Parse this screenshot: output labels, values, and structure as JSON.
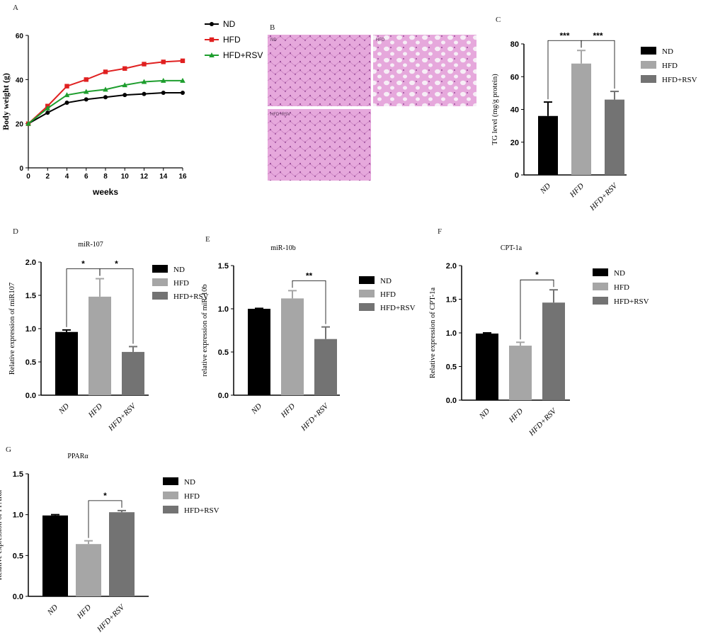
{
  "colors": {
    "nd": "#000000",
    "hfd_bar": "#a6a6a6",
    "hfd_rsv_bar": "#737373",
    "line_nd": "#000000",
    "line_hfd": "#e02020",
    "line_hfd_rsv": "#1e9e2e",
    "axis": "#000000",
    "histology": "#e0a3d6"
  },
  "histology": {
    "letter": "B",
    "labels": [
      "ND",
      "HFD",
      "HFD+RSV"
    ]
  },
  "chart_data": [
    {
      "id": "A",
      "letter": "A",
      "type": "line",
      "title": "",
      "xlabel": "weeks",
      "ylabel": "Body weight (g)",
      "x": [
        0,
        2,
        4,
        6,
        8,
        10,
        12,
        14,
        16
      ],
      "xticks": [
        "0",
        "2",
        "4",
        "6",
        "8",
        "10",
        "12",
        "14",
        "16"
      ],
      "yticks": [
        "0",
        "20",
        "40",
        "60"
      ],
      "xlim": [
        0,
        16
      ],
      "ylim": [
        0,
        60
      ],
      "legend_position": "right",
      "series": [
        {
          "name": "ND",
          "marker": "circle",
          "values": [
            20,
            25,
            29.5,
            31,
            32,
            33,
            33.5,
            34,
            34
          ]
        },
        {
          "name": "HFD",
          "marker": "square",
          "values": [
            20,
            28,
            37,
            40,
            43.5,
            45,
            47,
            48,
            48.5
          ]
        },
        {
          "name": "HFD+RSV",
          "marker": "triangle",
          "values": [
            20,
            27,
            33,
            34.5,
            35.5,
            37.5,
            39,
            39.5,
            39.5
          ]
        }
      ]
    },
    {
      "id": "C",
      "letter": "C",
      "type": "bar",
      "title": "",
      "ylabel": "TG level (mg/g protein)",
      "categories": [
        "ND",
        "HFD",
        "HFD+RSV"
      ],
      "values": [
        36,
        68,
        46
      ],
      "errors": [
        8.5,
        8,
        5
      ],
      "yticks": [
        "0",
        "20",
        "40",
        "60",
        "80"
      ],
      "ylim": [
        0,
        80
      ],
      "legend": [
        "ND",
        "HFD",
        "HFD+RSV"
      ],
      "legend_position": "right",
      "significance": [
        {
          "from": 0,
          "to": 1,
          "label": "***"
        },
        {
          "from": 1,
          "to": 2,
          "label": "***"
        }
      ]
    },
    {
      "id": "D",
      "letter": "D",
      "type": "bar",
      "title": "miR-107",
      "ylabel": "Relative expression of miR107",
      "categories": [
        "ND",
        "HFD",
        "HFD+RSV"
      ],
      "values": [
        0.95,
        1.48,
        0.65
      ],
      "errors": [
        0.03,
        0.27,
        0.08
      ],
      "yticks": [
        "0.0",
        "0.5",
        "1.0",
        "1.5",
        "2.0"
      ],
      "ylim": [
        0,
        2.0
      ],
      "legend": [
        "ND",
        "HFD",
        "HFD+RSV"
      ],
      "legend_position": "right",
      "significance": [
        {
          "from": 0,
          "to": 1,
          "label": "*"
        },
        {
          "from": 1,
          "to": 2,
          "label": "*"
        }
      ]
    },
    {
      "id": "E",
      "letter": "E",
      "type": "bar",
      "title": "miR-10b",
      "ylabel": "relative expression of miR-10b",
      "categories": [
        "ND",
        "HFD",
        "HFD+RSV"
      ],
      "values": [
        1.0,
        1.12,
        0.65
      ],
      "errors": [
        0.005,
        0.09,
        0.14
      ],
      "yticks": [
        "0.0",
        "0.5",
        "1.0",
        "1.5"
      ],
      "ylim": [
        0,
        1.5
      ],
      "legend": [
        "ND",
        "HFD",
        "HFD+RSV"
      ],
      "legend_position": "right",
      "significance": [
        {
          "from": 1,
          "to": 2,
          "label": "**"
        }
      ]
    },
    {
      "id": "F",
      "letter": "F",
      "type": "bar",
      "title": "CPT-1a",
      "ylabel": "Relative expression of CPT-1a",
      "categories": [
        "ND",
        "HFD",
        "HFD+RSV"
      ],
      "values": [
        0.99,
        0.81,
        1.45
      ],
      "errors": [
        0.01,
        0.05,
        0.19
      ],
      "yticks": [
        "0.0",
        "0.5",
        "1.0",
        "1.5",
        "2.0"
      ],
      "ylim": [
        0,
        2.0
      ],
      "legend": [
        "ND",
        "HFD",
        "HFD+RSV"
      ],
      "legend_position": "right",
      "significance": [
        {
          "from": 1,
          "to": 2,
          "label": "*"
        }
      ]
    },
    {
      "id": "G",
      "letter": "G",
      "type": "bar",
      "title": "PPARα",
      "ylabel": "Relative expression of PPARα",
      "categories": [
        "ND",
        "HFD",
        "HFD+RSV"
      ],
      "values": [
        0.99,
        0.64,
        1.03
      ],
      "errors": [
        0.01,
        0.04,
        0.02
      ],
      "yticks": [
        "0.0",
        "0.5",
        "1.0",
        "1.5"
      ],
      "ylim": [
        0,
        1.5
      ],
      "legend": [
        "ND",
        "HFD",
        "HFD+RSV"
      ],
      "legend_position": "right",
      "significance": [
        {
          "from": 1,
          "to": 2,
          "label": "*"
        }
      ]
    }
  ]
}
